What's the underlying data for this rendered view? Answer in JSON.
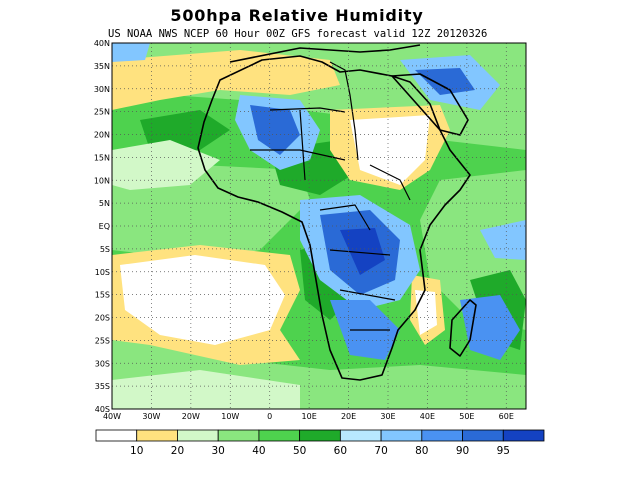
{
  "title": "500hpa Relative Humidity",
  "subtitle": "US NOAA NWS NCEP 60 Hour 00Z GFS forecast valid 12Z 20120326",
  "map": {
    "lon_range": [
      -40,
      65
    ],
    "lat_range": [
      -40,
      40
    ],
    "lon_ticks": [
      {
        "value": -40,
        "label": "40W"
      },
      {
        "value": -30,
        "label": "30W"
      },
      {
        "value": -20,
        "label": "20W"
      },
      {
        "value": -10,
        "label": "10W"
      },
      {
        "value": 0,
        "label": "0"
      },
      {
        "value": 10,
        "label": "10E"
      },
      {
        "value": 20,
        "label": "20E"
      },
      {
        "value": 30,
        "label": "30E"
      },
      {
        "value": 40,
        "label": "40E"
      },
      {
        "value": 50,
        "label": "50E"
      },
      {
        "value": 60,
        "label": "60E"
      }
    ],
    "lat_ticks": [
      {
        "value": 40,
        "label": "40N"
      },
      {
        "value": 35,
        "label": "35N"
      },
      {
        "value": 30,
        "label": "30N"
      },
      {
        "value": 25,
        "label": "25N"
      },
      {
        "value": 20,
        "label": "20N"
      },
      {
        "value": 15,
        "label": "15N"
      },
      {
        "value": 10,
        "label": "10N"
      },
      {
        "value": 5,
        "label": "5N"
      },
      {
        "value": 0,
        "label": "EQ"
      },
      {
        "value": -5,
        "label": "5S"
      },
      {
        "value": -10,
        "label": "10S"
      },
      {
        "value": -15,
        "label": "15S"
      },
      {
        "value": -20,
        "label": "20S"
      },
      {
        "value": -25,
        "label": "25S"
      },
      {
        "value": -30,
        "label": "30S"
      },
      {
        "value": -35,
        "label": "35S"
      },
      {
        "value": -40,
        "label": "40S"
      }
    ],
    "grid": true,
    "grid_style": "dotted"
  },
  "colorbar": {
    "colors": [
      "#ffffff",
      "#ffe27f",
      "#d2f8c8",
      "#8ae67f",
      "#4ed24e",
      "#1faa2a",
      "#b8e8ff",
      "#82c6ff",
      "#4a92f2",
      "#2a6ad6",
      "#1442c2"
    ],
    "labels": [
      "10",
      "20",
      "30",
      "40",
      "50",
      "60",
      "70",
      "80",
      "90",
      "95"
    ]
  }
}
